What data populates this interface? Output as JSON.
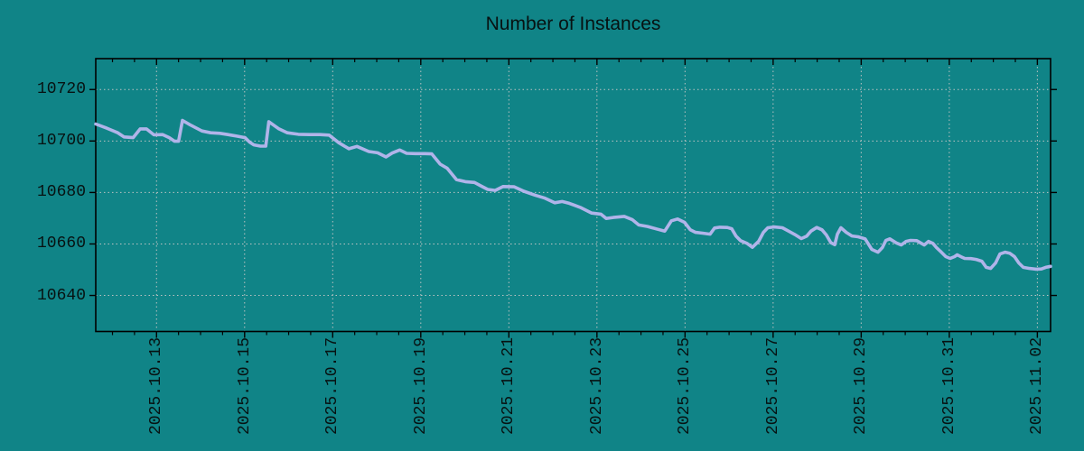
{
  "page": {
    "background": "#108487"
  },
  "chart_data": {
    "type": "line",
    "title": "Number of Instances",
    "xlabel": "",
    "ylabel": "",
    "legend": "none",
    "grid": "dotted",
    "colors": {
      "background": "#108487",
      "line": "#b0b4e9",
      "grid": "#bcc2c2",
      "axis": "#000000",
      "text": "#071212"
    },
    "x_unit": "days since 2025-10-11 00:00",
    "xlim": [
      0.62,
      22.3
    ],
    "ylim": [
      10626,
      10732
    ],
    "yticks": [
      10640,
      10660,
      10680,
      10700,
      10720
    ],
    "xticks": {
      "positions": [
        2,
        4,
        6,
        8,
        10,
        12,
        14,
        16,
        18,
        20,
        22
      ],
      "labels": [
        "2025.10.13",
        "2025.10.15",
        "2025.10.17",
        "2025.10.19",
        "2025.10.21",
        "2025.10.23",
        "2025.10.25",
        "2025.10.27",
        "2025.10.29",
        "2025.10.31",
        "2025.11.02"
      ]
    },
    "x_minor_interval": 0.5,
    "points": [
      [
        0.62,
        10706.6
      ],
      [
        0.87,
        10705.0
      ],
      [
        1.12,
        10703.2
      ],
      [
        1.26,
        10701.6
      ],
      [
        1.47,
        10701.3
      ],
      [
        1.63,
        10704.7
      ],
      [
        1.77,
        10704.7
      ],
      [
        1.94,
        10702.4
      ],
      [
        2.14,
        10702.5
      ],
      [
        2.29,
        10701.3
      ],
      [
        2.41,
        10699.9
      ],
      [
        2.5,
        10699.9
      ],
      [
        2.59,
        10708.0
      ],
      [
        2.76,
        10706.3
      ],
      [
        3.03,
        10703.9
      ],
      [
        3.23,
        10703.2
      ],
      [
        3.44,
        10703.0
      ],
      [
        3.62,
        10702.5
      ],
      [
        3.82,
        10701.9
      ],
      [
        4.01,
        10701.3
      ],
      [
        4.11,
        10699.6
      ],
      [
        4.21,
        10698.5
      ],
      [
        4.36,
        10698.0
      ],
      [
        4.48,
        10698.0
      ],
      [
        4.55,
        10707.5
      ],
      [
        4.77,
        10704.8
      ],
      [
        4.97,
        10703.2
      ],
      [
        5.22,
        10702.6
      ],
      [
        5.47,
        10702.5
      ],
      [
        5.71,
        10702.5
      ],
      [
        5.92,
        10702.3
      ],
      [
        6.14,
        10699.3
      ],
      [
        6.37,
        10697.0
      ],
      [
        6.55,
        10697.9
      ],
      [
        6.82,
        10695.9
      ],
      [
        7.02,
        10695.4
      ],
      [
        7.21,
        10693.8
      ],
      [
        7.35,
        10695.3
      ],
      [
        7.52,
        10696.5
      ],
      [
        7.68,
        10695.2
      ],
      [
        7.88,
        10695.1
      ],
      [
        8.09,
        10695.1
      ],
      [
        8.25,
        10695.0
      ],
      [
        8.44,
        10691.0
      ],
      [
        8.6,
        10689.4
      ],
      [
        8.81,
        10685.0
      ],
      [
        9.01,
        10684.2
      ],
      [
        9.22,
        10683.9
      ],
      [
        9.38,
        10682.4
      ],
      [
        9.52,
        10681.2
      ],
      [
        9.69,
        10680.8
      ],
      [
        9.87,
        10682.3
      ],
      [
        10.12,
        10682.2
      ],
      [
        10.34,
        10680.5
      ],
      [
        10.59,
        10679.0
      ],
      [
        10.82,
        10677.8
      ],
      [
        11.04,
        10676.0
      ],
      [
        11.21,
        10676.5
      ],
      [
        11.37,
        10675.8
      ],
      [
        11.62,
        10674.2
      ],
      [
        11.88,
        10672.0
      ],
      [
        12.09,
        10671.6
      ],
      [
        12.21,
        10669.9
      ],
      [
        12.37,
        10670.3
      ],
      [
        12.62,
        10670.7
      ],
      [
        12.8,
        10669.5
      ],
      [
        12.95,
        10667.4
      ],
      [
        13.15,
        10666.8
      ],
      [
        13.38,
        10665.7
      ],
      [
        13.54,
        10665.0
      ],
      [
        13.69,
        10669.0
      ],
      [
        13.83,
        10669.7
      ],
      [
        13.99,
        10668.4
      ],
      [
        14.12,
        10665.5
      ],
      [
        14.24,
        10664.5
      ],
      [
        14.4,
        10664.2
      ],
      [
        14.57,
        10663.8
      ],
      [
        14.67,
        10666.2
      ],
      [
        14.79,
        10666.5
      ],
      [
        14.96,
        10666.4
      ],
      [
        15.06,
        10665.9
      ],
      [
        15.16,
        10663.0
      ],
      [
        15.26,
        10661.3
      ],
      [
        15.41,
        10660.2
      ],
      [
        15.53,
        10658.7
      ],
      [
        15.67,
        10661.0
      ],
      [
        15.78,
        10664.5
      ],
      [
        15.88,
        10666.3
      ],
      [
        16.02,
        10666.6
      ],
      [
        16.21,
        10666.3
      ],
      [
        16.35,
        10665.0
      ],
      [
        16.49,
        10663.7
      ],
      [
        16.64,
        10662.1
      ],
      [
        16.76,
        10663.0
      ],
      [
        16.86,
        10665.0
      ],
      [
        16.99,
        10666.4
      ],
      [
        17.11,
        10665.5
      ],
      [
        17.21,
        10663.5
      ],
      [
        17.31,
        10660.5
      ],
      [
        17.4,
        10659.7
      ],
      [
        17.46,
        10663.8
      ],
      [
        17.54,
        10666.3
      ],
      [
        17.66,
        10664.5
      ],
      [
        17.79,
        10663.1
      ],
      [
        17.93,
        10662.8
      ],
      [
        18.09,
        10662.0
      ],
      [
        18.15,
        10660.3
      ],
      [
        18.24,
        10657.9
      ],
      [
        18.38,
        10656.8
      ],
      [
        18.48,
        10658.6
      ],
      [
        18.56,
        10661.4
      ],
      [
        18.65,
        10662.0
      ],
      [
        18.81,
        10660.3
      ],
      [
        18.91,
        10659.6
      ],
      [
        19.02,
        10661.0
      ],
      [
        19.12,
        10661.4
      ],
      [
        19.26,
        10661.3
      ],
      [
        19.43,
        10659.6
      ],
      [
        19.53,
        10661.0
      ],
      [
        19.63,
        10660.2
      ],
      [
        19.71,
        10658.6
      ],
      [
        19.82,
        10656.8
      ],
      [
        19.92,
        10655.1
      ],
      [
        20.02,
        10654.4
      ],
      [
        20.12,
        10655.1
      ],
      [
        20.18,
        10655.8
      ],
      [
        20.27,
        10655.0
      ],
      [
        20.35,
        10654.4
      ],
      [
        20.49,
        10654.3
      ],
      [
        20.61,
        10654.0
      ],
      [
        20.74,
        10653.3
      ],
      [
        20.84,
        10650.9
      ],
      [
        20.94,
        10650.5
      ],
      [
        21.05,
        10652.6
      ],
      [
        21.15,
        10656.1
      ],
      [
        21.27,
        10656.8
      ],
      [
        21.37,
        10656.4
      ],
      [
        21.48,
        10655.1
      ],
      [
        21.58,
        10652.6
      ],
      [
        21.68,
        10650.9
      ],
      [
        21.82,
        10650.5
      ],
      [
        21.97,
        10650.2
      ],
      [
        22.09,
        10650.3
      ],
      [
        22.19,
        10650.9
      ],
      [
        22.3,
        10651.3
      ]
    ]
  }
}
